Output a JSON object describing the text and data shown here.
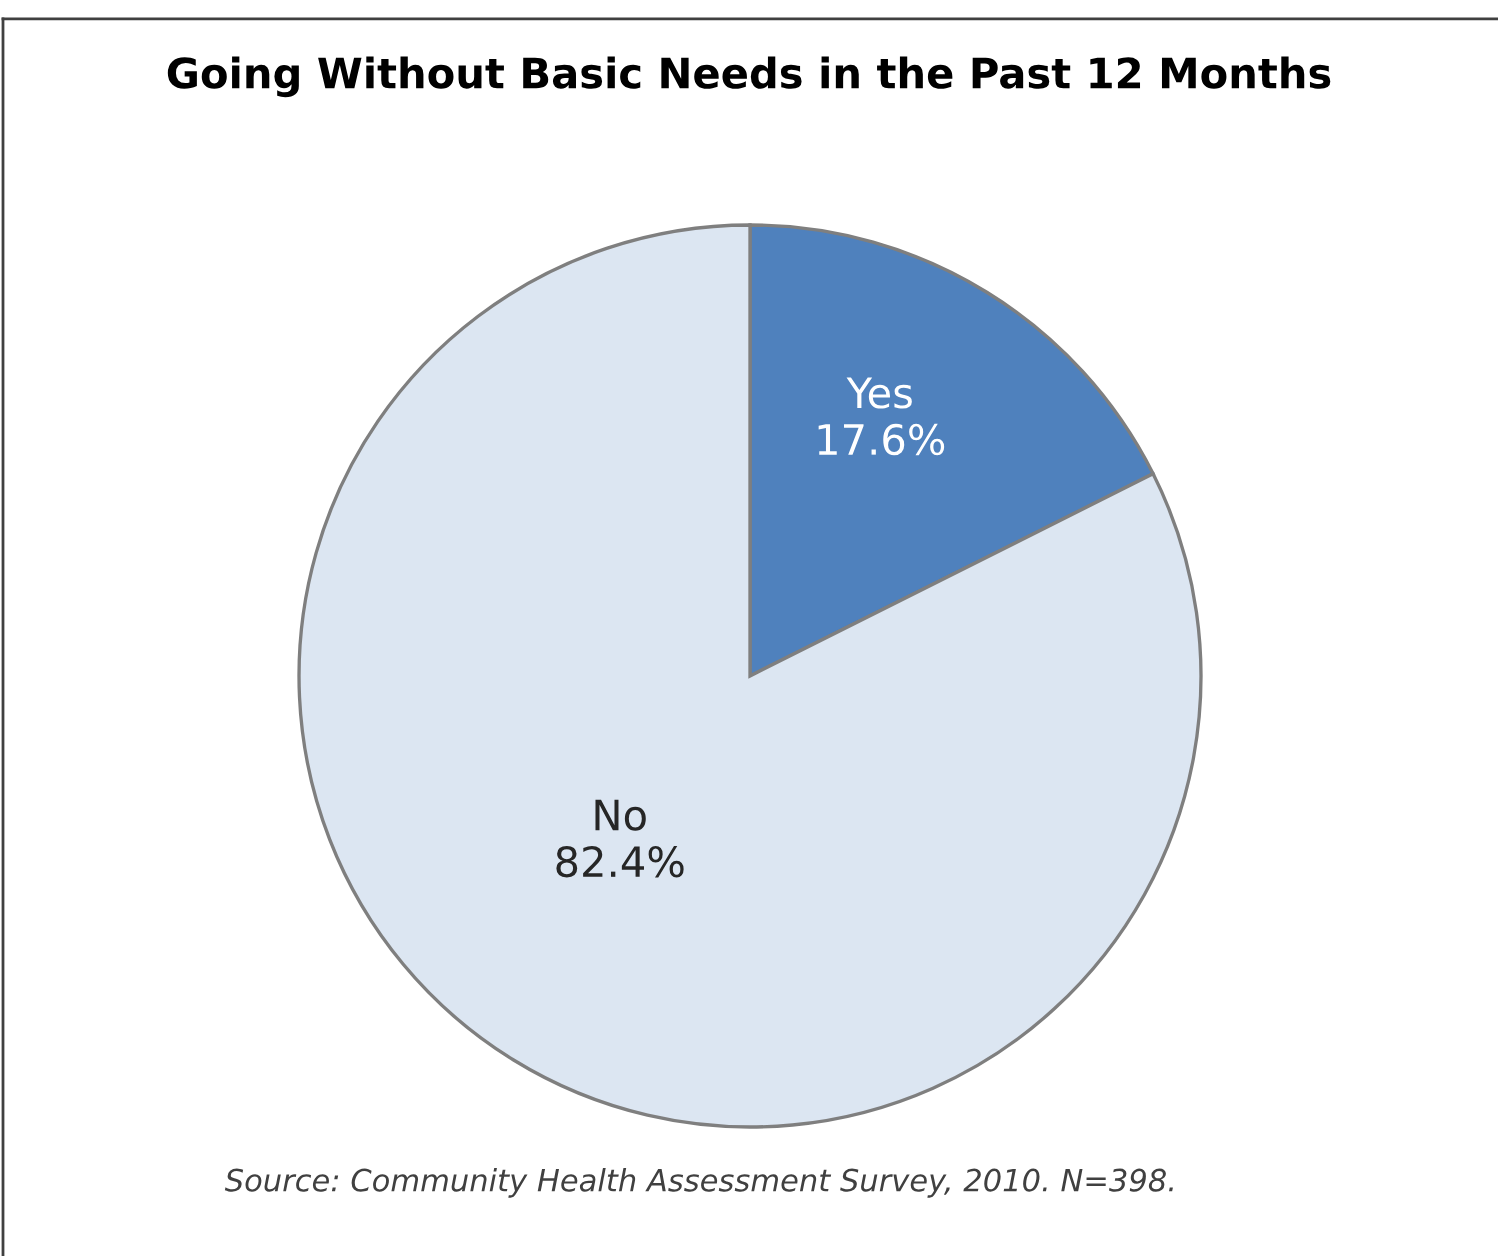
{
  "chart_data": {
    "type": "pie",
    "title": "Going Without Basic Needs in the Past 12 Months",
    "categories": [
      "Yes",
      "No"
    ],
    "values": [
      17.6,
      82.4
    ],
    "value_labels": [
      "17.6%",
      "82.4%"
    ],
    "colors": [
      "#4f81bd",
      "#dce6f2"
    ],
    "legend": false,
    "annotations": [
      "Source: Community Health Assessment Survey, 2010. N=398."
    ]
  }
}
